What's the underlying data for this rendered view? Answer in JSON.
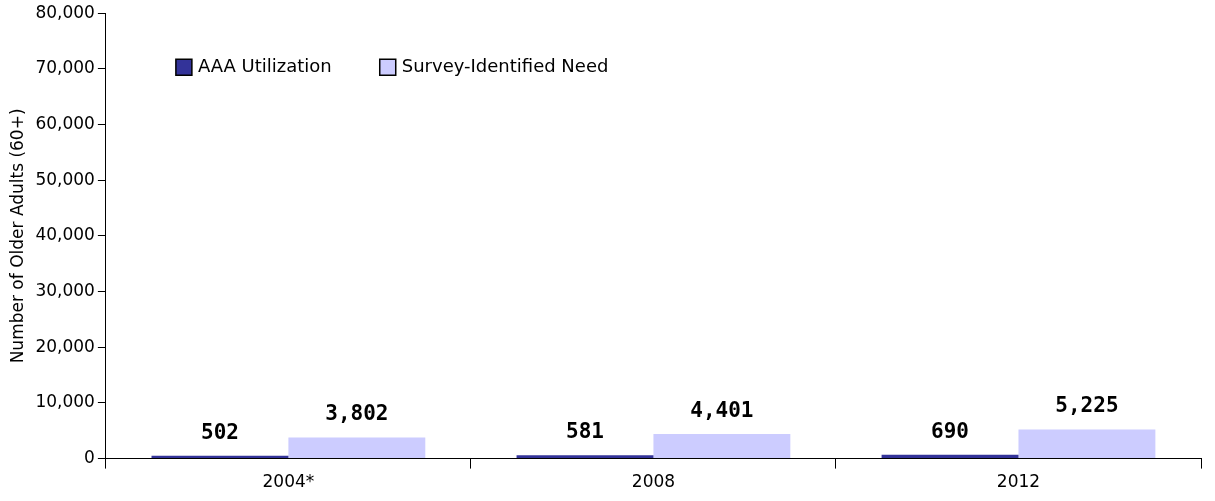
{
  "chart_data": {
    "type": "bar",
    "ylabel": "Number of Older Adults (60+)",
    "categories": [
      "2004*",
      "2008",
      "2012"
    ],
    "series": [
      {
        "name": "AAA Utilization",
        "color": "#333399",
        "values": [
          502,
          581,
          690
        ],
        "value_labels": [
          "502",
          "581",
          "690"
        ]
      },
      {
        "name": "Survey-Identified Need",
        "color": "#ccccff",
        "values": [
          3802,
          4401,
          5225
        ],
        "value_labels": [
          "3,802",
          "4,401",
          "5,225"
        ]
      }
    ],
    "ylim": [
      0,
      80000
    ],
    "yticks": [
      0,
      {
        "value": 10000,
        "label": "10,000"
      },
      {
        "value": 20000,
        "label": "20,000"
      },
      {
        "value": 30000,
        "label": "30,000"
      },
      {
        "value": 40000,
        "label": "40,000"
      },
      {
        "value": 50000,
        "label": "50,000"
      },
      {
        "value": 60000,
        "label": "60,000"
      },
      {
        "value": 70000,
        "label": "70,000"
      },
      {
        "value": 80000,
        "label": "80,000"
      }
    ],
    "legend": "top left",
    "grid": false
  }
}
